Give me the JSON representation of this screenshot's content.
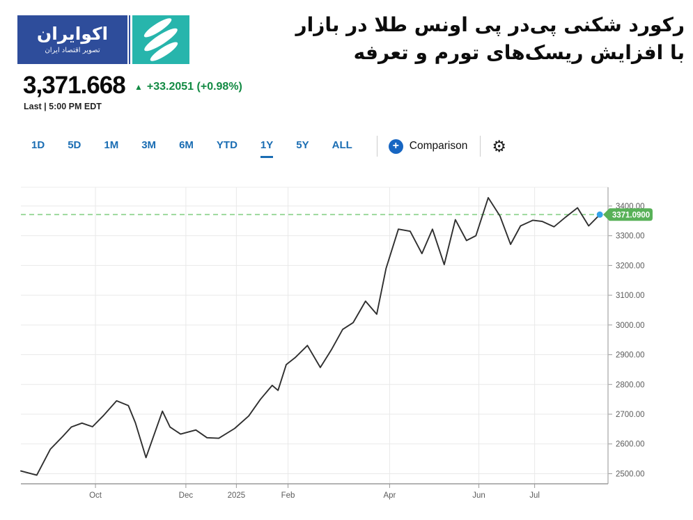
{
  "logo": {
    "title_fa": "اکوایران",
    "tagline_fa": "تصویر اقتصاد ایران",
    "blue": "#2e4d9b",
    "teal": "#27b5ac"
  },
  "headline": {
    "line1": "رکورد شکنی پی‌در پی اونس طلا در بازار",
    "line2": "با افزایش ریسک‌های تورم و تعرفه"
  },
  "quote": {
    "price": "3,371.668",
    "change": "+33.2051 (+0.98%)",
    "change_color": "#128a43",
    "last_label": "Last | 5:00 PM EDT"
  },
  "toolbar": {
    "ranges": [
      {
        "label": "1D",
        "active": false
      },
      {
        "label": "5D",
        "active": false
      },
      {
        "label": "1M",
        "active": false
      },
      {
        "label": "3M",
        "active": false
      },
      {
        "label": "6M",
        "active": false
      },
      {
        "label": "YTD",
        "active": false
      },
      {
        "label": "1Y",
        "active": true
      },
      {
        "label": "5Y",
        "active": false
      },
      {
        "label": "ALL",
        "active": false
      }
    ],
    "comparison_label": "Comparison",
    "accent": "#1a6db3"
  },
  "icons": {
    "up_triangle": "▲",
    "plus": "+",
    "gear": "⚙"
  },
  "chart_data": {
    "type": "line",
    "xlabel": "",
    "ylabel": "",
    "x_ticks": [
      {
        "label": "Oct",
        "t": 0.127
      },
      {
        "label": "Dec",
        "t": 0.281
      },
      {
        "label": "2025",
        "t": 0.367
      },
      {
        "label": "Feb",
        "t": 0.455
      },
      {
        "label": "Apr",
        "t": 0.628
      },
      {
        "label": "Jun",
        "t": 0.78
      },
      {
        "label": "Jul",
        "t": 0.875
      }
    ],
    "y_ticks": [
      {
        "value": 3400,
        "label": "3400.00"
      },
      {
        "value": 3300,
        "label": "3300.00"
      },
      {
        "value": 3200,
        "label": "3200.00"
      },
      {
        "value": 3100,
        "label": "3100.00"
      },
      {
        "value": 3000,
        "label": "3000.00"
      },
      {
        "value": 2900,
        "label": "2900.00"
      },
      {
        "value": 2800,
        "label": "2800.00"
      },
      {
        "value": 2700,
        "label": "2700.00"
      },
      {
        "value": 2600,
        "label": "2600.00"
      },
      {
        "value": 2500,
        "label": "2500.00"
      }
    ],
    "y_range": [
      2466,
      3463
    ],
    "last_price": 3371.09,
    "last_price_label": "3371.0900",
    "grid": true,
    "line_color": "#2f2f2f",
    "dash_color": "#8ed38e",
    "badge_color": "#58b158",
    "dot_color": "#34a3e8",
    "axis_text_color": "#5b5b5b",
    "points": [
      [
        0.0,
        2509
      ],
      [
        0.027,
        2495
      ],
      [
        0.05,
        2582
      ],
      [
        0.071,
        2625
      ],
      [
        0.086,
        2657
      ],
      [
        0.104,
        2670
      ],
      [
        0.122,
        2658
      ],
      [
        0.14,
        2694
      ],
      [
        0.163,
        2745
      ],
      [
        0.183,
        2729
      ],
      [
        0.195,
        2671
      ],
      [
        0.213,
        2554
      ],
      [
        0.241,
        2710
      ],
      [
        0.254,
        2657
      ],
      [
        0.272,
        2633
      ],
      [
        0.298,
        2647
      ],
      [
        0.317,
        2621
      ],
      [
        0.337,
        2619
      ],
      [
        0.364,
        2652
      ],
      [
        0.388,
        2694
      ],
      [
        0.408,
        2750
      ],
      [
        0.428,
        2797
      ],
      [
        0.438,
        2780
      ],
      [
        0.452,
        2867
      ],
      [
        0.467,
        2890
      ],
      [
        0.488,
        2931
      ],
      [
        0.51,
        2857
      ],
      [
        0.529,
        2917
      ],
      [
        0.548,
        2985
      ],
      [
        0.566,
        3008
      ],
      [
        0.587,
        3080
      ],
      [
        0.606,
        3036
      ],
      [
        0.622,
        3190
      ],
      [
        0.643,
        3322
      ],
      [
        0.663,
        3315
      ],
      [
        0.683,
        3240
      ],
      [
        0.701,
        3322
      ],
      [
        0.721,
        3203
      ],
      [
        0.74,
        3354
      ],
      [
        0.759,
        3284
      ],
      [
        0.775,
        3300
      ],
      [
        0.796,
        3428
      ],
      [
        0.816,
        3366
      ],
      [
        0.834,
        3271
      ],
      [
        0.851,
        3333
      ],
      [
        0.872,
        3352
      ],
      [
        0.888,
        3348
      ],
      [
        0.908,
        3330
      ],
      [
        0.928,
        3363
      ],
      [
        0.948,
        3394
      ],
      [
        0.967,
        3333
      ],
      [
        0.986,
        3371.09
      ]
    ]
  }
}
